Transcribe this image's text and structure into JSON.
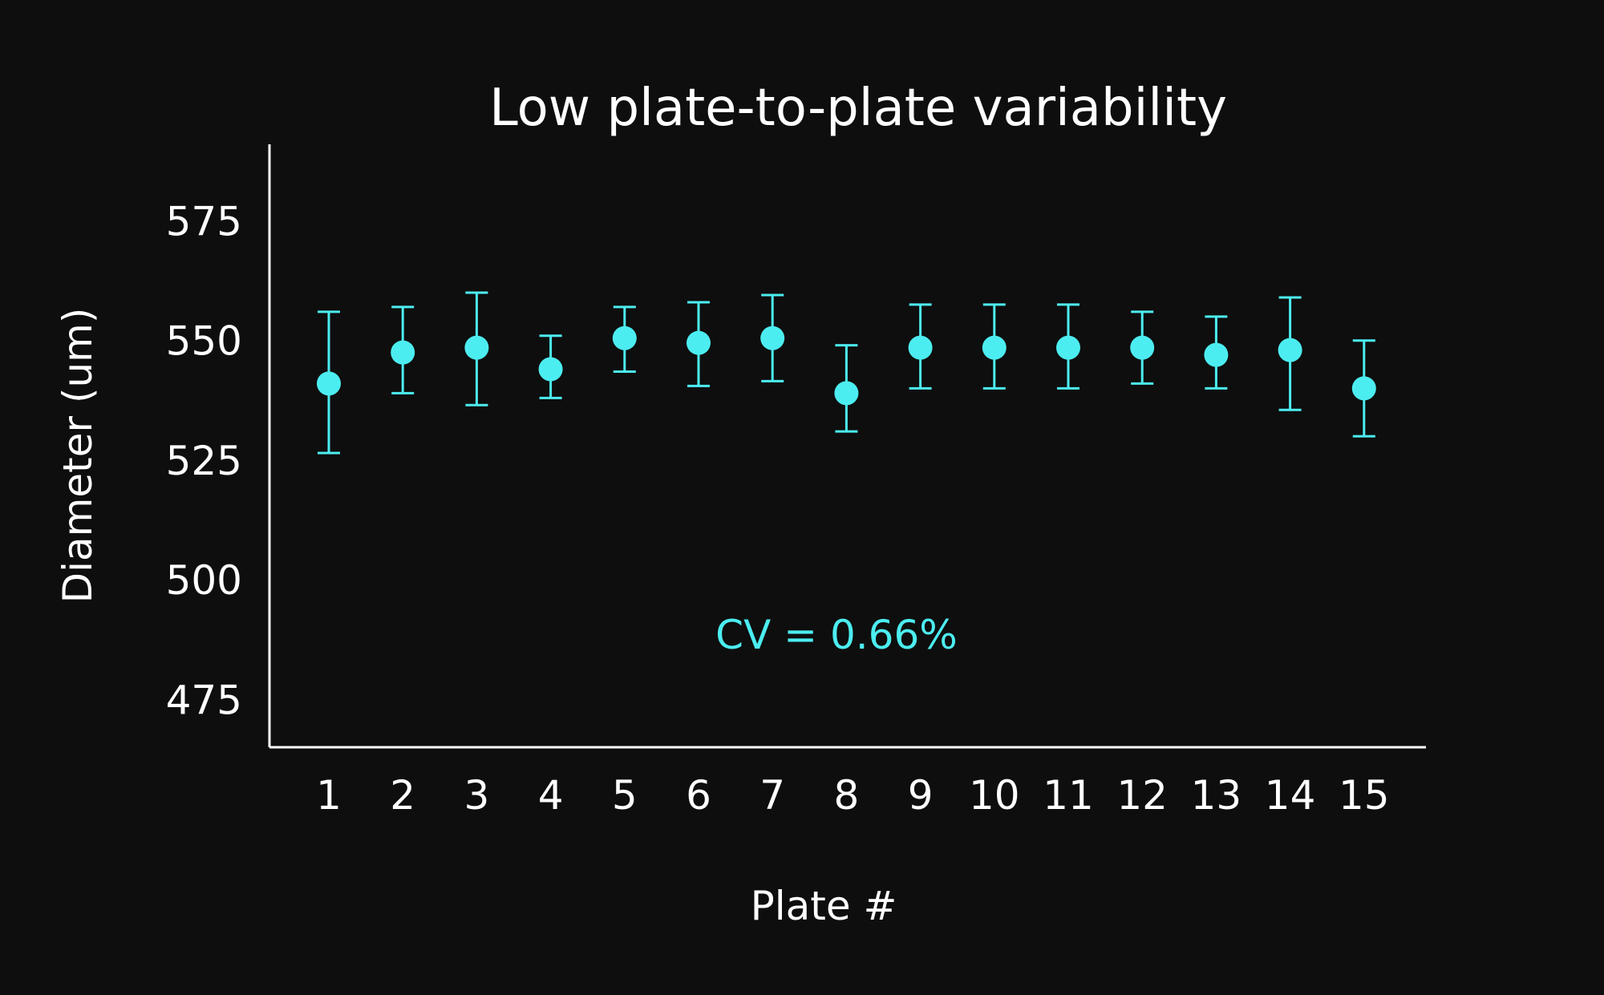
{
  "chart_data": {
    "type": "scatter",
    "title": "Low plate-to-plate variability",
    "xlabel": "Plate #",
    "ylabel": "Diameter (um)",
    "ylim": [
      465,
      591
    ],
    "yticks": [
      475,
      500,
      525,
      550,
      575
    ],
    "categories": [
      "1",
      "2",
      "3",
      "4",
      "5",
      "6",
      "7",
      "8",
      "9",
      "10",
      "11",
      "12",
      "13",
      "14",
      "15"
    ],
    "series": [
      {
        "values": [
          541,
          547.5,
          548.5,
          544,
          550.5,
          549.5,
          550.5,
          539,
          548.5,
          548.5,
          548.5,
          548.5,
          547,
          548,
          540
        ],
        "err_low": [
          526.5,
          539,
          536.5,
          538,
          543.5,
          540.5,
          541.5,
          531,
          540,
          540,
          540,
          541,
          540,
          535.5,
          530
        ],
        "err_high": [
          556,
          557,
          560,
          551,
          557,
          558,
          559.5,
          549,
          557.5,
          557.5,
          557.5,
          556,
          555,
          559,
          550
        ]
      }
    ],
    "annotation": "CV = 0.66%",
    "grid": false,
    "colors": {
      "marker": "#4cedf0",
      "axis": "#ffffff",
      "background": "#0e0e0e"
    }
  }
}
